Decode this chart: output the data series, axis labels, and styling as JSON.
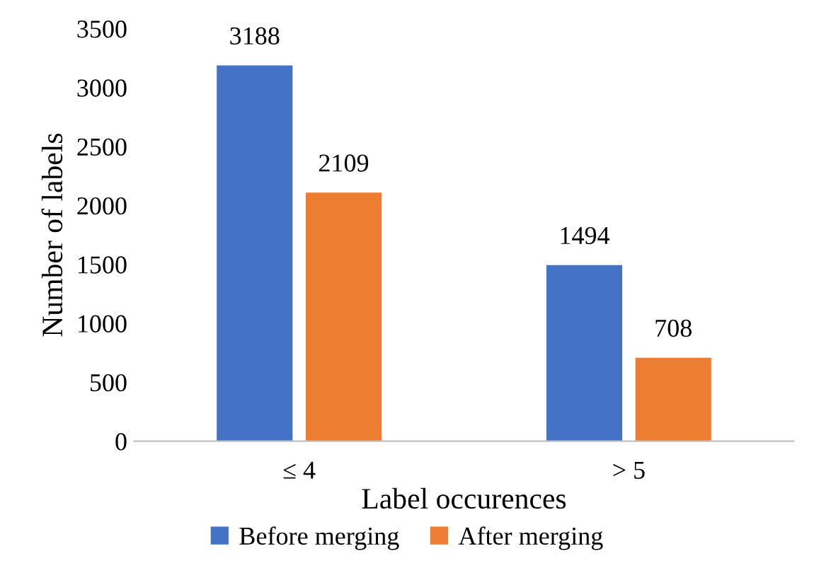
{
  "chart_data": {
    "type": "bar",
    "xlabel": "Label occurences",
    "ylabel": "Number of labels",
    "categories": [
      "≤ 4",
      "> 5"
    ],
    "series": [
      {
        "name": "Before merging",
        "color": "#4472c4",
        "values": [
          3188,
          1494
        ]
      },
      {
        "name": "After merging",
        "color": "#ed7d31",
        "values": [
          2109,
          708
        ]
      }
    ],
    "ylim": [
      0,
      3500
    ],
    "yticks": [
      0,
      500,
      1000,
      1500,
      2000,
      2500,
      3000,
      3500
    ],
    "data_labels": true,
    "legend": "bottom",
    "grid": false
  }
}
